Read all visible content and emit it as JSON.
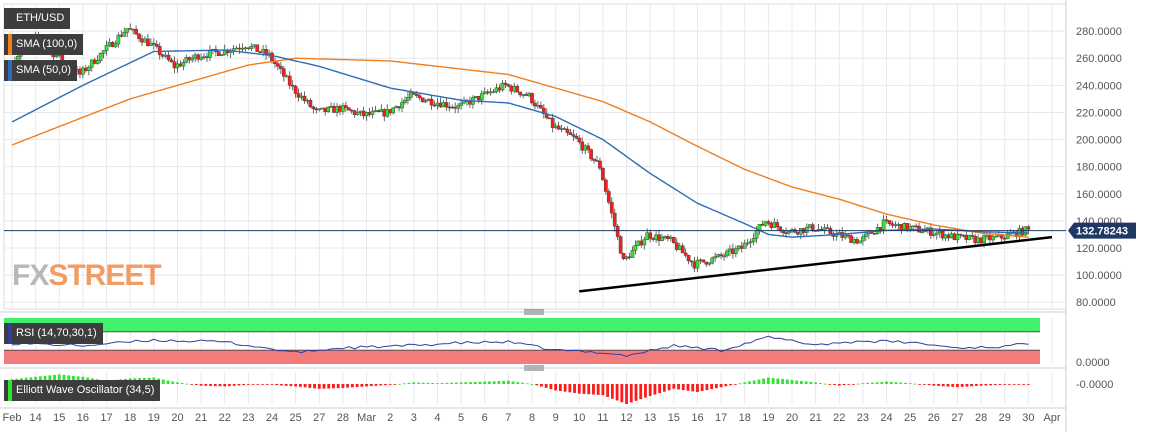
{
  "chart_data": [
    {
      "type": "candlestick",
      "title": "ETH/USD",
      "y_range": [
        75,
        300
      ],
      "y_ticks": [
        "80.0000",
        "100.0000",
        "120.0000",
        "140.0000",
        "160.0000",
        "180.0000",
        "200.0000",
        "220.0000",
        "240.0000",
        "260.0000",
        "280.0000"
      ],
      "current_price": "132.78243",
      "current_price_value": 132.78,
      "x_labels": [
        "Feb",
        "14",
        "15",
        "16",
        "17",
        "18",
        "19",
        "20",
        "21",
        "22",
        "23",
        "24",
        "25",
        "27",
        "28",
        "Mar",
        "2",
        "3",
        "4",
        "5",
        "6",
        "7",
        "8",
        "9",
        "10",
        "11",
        "12",
        "13",
        "15",
        "16",
        "17",
        "18",
        "19",
        "20",
        "21",
        "22",
        "23",
        "24",
        "25",
        "26",
        "27",
        "28",
        "29",
        "30",
        "Apr"
      ],
      "price_anchors": [
        [
          0,
          255
        ],
        [
          1,
          275
        ],
        [
          2,
          262
        ],
        [
          3,
          248
        ],
        [
          4,
          265
        ],
        [
          5,
          282
        ],
        [
          6,
          270
        ],
        [
          7,
          254
        ],
        [
          8,
          262
        ],
        [
          9,
          265
        ],
        [
          10,
          270
        ],
        [
          11,
          262
        ],
        [
          12,
          238
        ],
        [
          13,
          220
        ],
        [
          14,
          223
        ],
        [
          15,
          218
        ],
        [
          16,
          220
        ],
        [
          17,
          232
        ],
        [
          18,
          228
        ],
        [
          19,
          224
        ],
        [
          20,
          232
        ],
        [
          21,
          240
        ],
        [
          22,
          232
        ],
        [
          23,
          210
        ],
        [
          24,
          200
        ],
        [
          25,
          180
        ],
        [
          26,
          110
        ],
        [
          27,
          130
        ],
        [
          28,
          125
        ],
        [
          29,
          108
        ],
        [
          30,
          113
        ],
        [
          31,
          120
        ],
        [
          32,
          140
        ],
        [
          33,
          132
        ],
        [
          34,
          135
        ],
        [
          35,
          130
        ],
        [
          36,
          125
        ],
        [
          37,
          138
        ],
        [
          38,
          135
        ],
        [
          39,
          132
        ],
        [
          40,
          128
        ],
        [
          41,
          126
        ],
        [
          42,
          128
        ],
        [
          43,
          133
        ]
      ],
      "series": [
        {
          "name": "SMA (100,0)",
          "color": "#f07f1e",
          "values": [
            [
              0,
              196
            ],
            [
              5,
              230
            ],
            [
              10,
              255
            ],
            [
              12,
              260
            ],
            [
              16,
              258
            ],
            [
              19,
              252
            ],
            [
              21,
              248
            ],
            [
              23,
              238
            ],
            [
              25,
              228
            ],
            [
              27,
              213
            ],
            [
              29,
              195
            ],
            [
              31,
              178
            ],
            [
              33,
              165
            ],
            [
              35,
              156
            ],
            [
              37,
              145
            ],
            [
              39,
              137
            ],
            [
              41,
              131
            ],
            [
              43,
              128
            ]
          ]
        },
        {
          "name": "SMA (50,0)",
          "color": "#2f6cb5",
          "values": [
            [
              0,
              213
            ],
            [
              3,
              240
            ],
            [
              6,
              265
            ],
            [
              9,
              266
            ],
            [
              11,
              262
            ],
            [
              13,
              254
            ],
            [
              16,
              238
            ],
            [
              19,
              229
            ],
            [
              21,
              227
            ],
            [
              23,
              217
            ],
            [
              25,
              200
            ],
            [
              27,
              175
            ],
            [
              29,
              153
            ],
            [
              31,
              138
            ],
            [
              32,
              130
            ],
            [
              33,
              128
            ],
            [
              35,
              130
            ],
            [
              37,
              133
            ],
            [
              39,
              134
            ],
            [
              41,
              132
            ],
            [
              43,
              131
            ]
          ]
        }
      ],
      "trendline": {
        "from": [
          24,
          88
        ],
        "to": [
          44,
          128
        ],
        "color": "#000000"
      },
      "legend_placement": "top-left",
      "grid": true
    },
    {
      "type": "line",
      "title": "RSI (14,70,30,1)",
      "y_ticks": [
        "0.0000"
      ],
      "overbought_zone": [
        70,
        100
      ],
      "oversold_zone": [
        0,
        30
      ],
      "y_range": [
        0,
        100
      ],
      "values": [
        [
          0,
          45
        ],
        [
          3,
          40
        ],
        [
          6,
          52
        ],
        [
          9,
          48
        ],
        [
          12,
          25
        ],
        [
          14,
          35
        ],
        [
          16,
          38
        ],
        [
          19,
          46
        ],
        [
          21,
          48
        ],
        [
          23,
          30
        ],
        [
          25,
          25
        ],
        [
          26,
          18
        ],
        [
          28,
          40
        ],
        [
          30,
          30
        ],
        [
          32,
          58
        ],
        [
          34,
          42
        ],
        [
          36,
          50
        ],
        [
          38,
          47
        ],
        [
          40,
          35
        ],
        [
          42,
          38
        ],
        [
          43,
          45
        ]
      ],
      "color": "#2f3f9f",
      "zone_colors": {
        "overbought": "#43f06a",
        "oversold": "#f27c7c"
      }
    },
    {
      "type": "bar",
      "title": "Elliott Wave Oscillator (34,5)",
      "y_ticks": [
        "-0.0000"
      ],
      "colors": {
        "positive": "#2ee62e",
        "negative": "#ff1a1a"
      },
      "values": [
        [
          0,
          6
        ],
        [
          1,
          9
        ],
        [
          2,
          12
        ],
        [
          3,
          9
        ],
        [
          4,
          4
        ],
        [
          5,
          7
        ],
        [
          6,
          8
        ],
        [
          7,
          2
        ],
        [
          8,
          -2
        ],
        [
          9,
          -3
        ],
        [
          10,
          -1
        ],
        [
          11,
          -1
        ],
        [
          12,
          -3
        ],
        [
          13,
          -6
        ],
        [
          14,
          -5
        ],
        [
          15,
          -3
        ],
        [
          16,
          -1
        ],
        [
          17,
          2
        ],
        [
          18,
          1
        ],
        [
          19,
          2
        ],
        [
          20,
          3
        ],
        [
          21,
          4
        ],
        [
          22,
          0
        ],
        [
          23,
          -8
        ],
        [
          24,
          -12
        ],
        [
          25,
          -14
        ],
        [
          26,
          -25
        ],
        [
          27,
          -15
        ],
        [
          28,
          -6
        ],
        [
          29,
          -10
        ],
        [
          30,
          -4
        ],
        [
          31,
          2
        ],
        [
          32,
          8
        ],
        [
          33,
          5
        ],
        [
          34,
          2
        ],
        [
          35,
          -2
        ],
        [
          36,
          1
        ],
        [
          37,
          3
        ],
        [
          38,
          1
        ],
        [
          39,
          -2
        ],
        [
          40,
          -4
        ],
        [
          41,
          -2
        ],
        [
          42,
          -1
        ],
        [
          43,
          -1
        ]
      ]
    }
  ],
  "watermark": {
    "part1": "FX",
    "part2": "STREET"
  },
  "colors": {
    "grid": "#e5e8ee",
    "axis_text": "#555555",
    "price_label_bg": "#1f3864",
    "candle_up": "#2ee62e",
    "candle_down": "#ff1a1a",
    "legend_bg": "#3d3d3d"
  }
}
